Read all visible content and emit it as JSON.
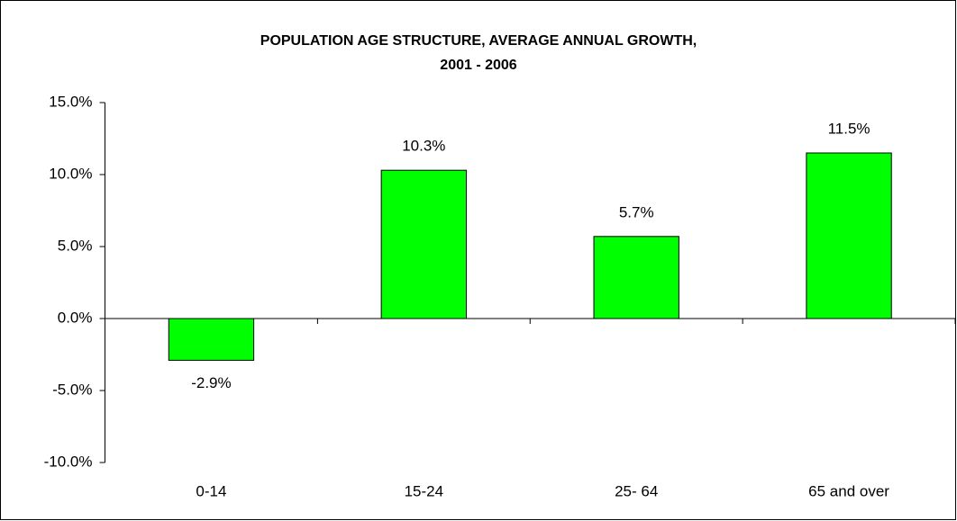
{
  "chart_data": {
    "type": "bar",
    "title": [
      "POPULATION AGE STRUCTURE, AVERAGE ANNUAL GROWTH,",
      "2001 - 2006"
    ],
    "categories": [
      "0-14",
      "15-24",
      "25- 64",
      "65 and over"
    ],
    "values": [
      -2.9,
      10.3,
      5.7,
      11.5
    ],
    "value_labels": [
      "-2.9%",
      "10.3%",
      "5.7%",
      "11.5%"
    ],
    "color": "#00ff00",
    "ylim": [
      -10,
      15
    ],
    "yticks": [
      {
        "value": -10,
        "label": "-10.0%"
      },
      {
        "value": -5,
        "label": "-5.0%"
      },
      {
        "value": 0,
        "label": "0.0%"
      },
      {
        "value": 5,
        "label": "5.0%"
      },
      {
        "value": 10,
        "label": "10.0%"
      },
      {
        "value": 15,
        "label": "15.0%"
      }
    ],
    "grid": false
  }
}
